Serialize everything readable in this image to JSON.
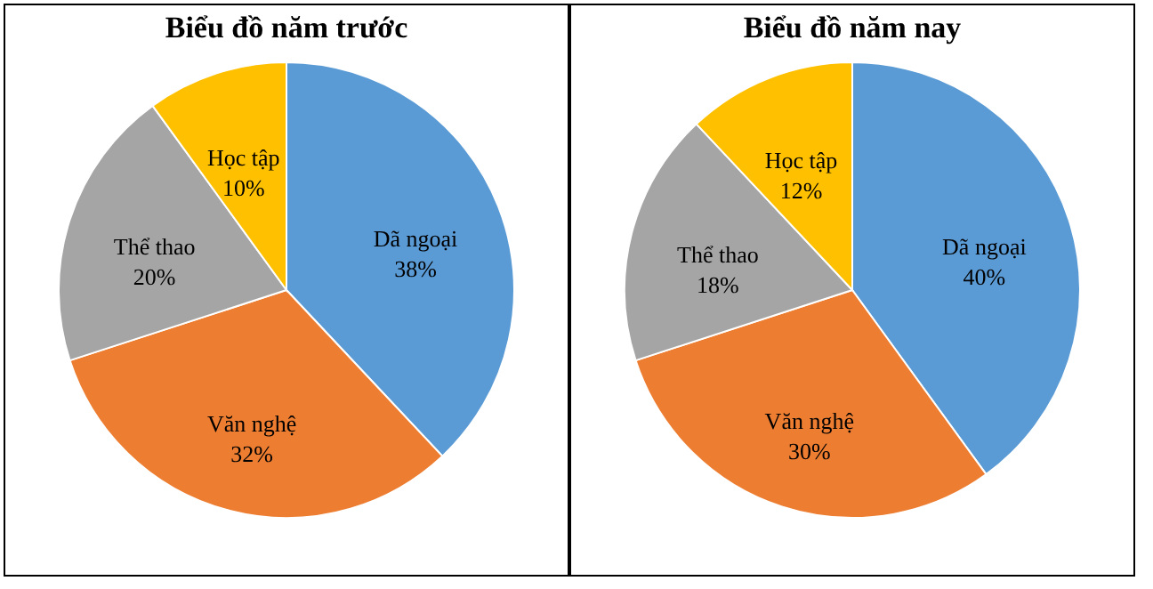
{
  "chart_data": [
    {
      "type": "pie",
      "title": "Biểu đồ năm trước",
      "categories": [
        "Dã ngoại",
        "Văn nghệ",
        "Thể thao",
        "Học tập"
      ],
      "values": [
        38,
        32,
        20,
        10
      ],
      "value_labels": [
        "38%",
        "32%",
        "20%",
        "10%"
      ],
      "colors": [
        "#5b9bd5",
        "#ed7d31",
        "#a5a5a5",
        "#ffc000"
      ]
    },
    {
      "type": "pie",
      "title": "Biểu đồ năm nay",
      "categories": [
        "Dã ngoại",
        "Văn nghệ",
        "Thể thao",
        "Học tập"
      ],
      "values": [
        40,
        30,
        18,
        12
      ],
      "value_labels": [
        "40%",
        "30%",
        "18%",
        "12%"
      ],
      "colors": [
        "#5b9bd5",
        "#ed7d31",
        "#a5a5a5",
        "#ffc000"
      ]
    }
  ]
}
